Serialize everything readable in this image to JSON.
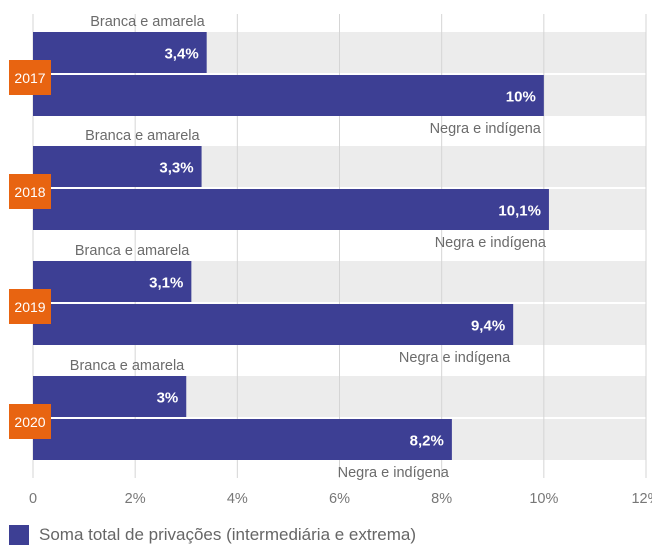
{
  "chart_data": {
    "type": "bar",
    "orientation": "horizontal",
    "groups": [
      {
        "label": "2017",
        "bars": [
          {
            "category": "Branca e amarela",
            "value": 3.4,
            "value_label": "3,4%"
          },
          {
            "category": "Negra e indígena",
            "value": 10.0,
            "value_label": "10%"
          }
        ]
      },
      {
        "label": "2018",
        "bars": [
          {
            "category": "Branca e amarela",
            "value": 3.3,
            "value_label": "3,3%"
          },
          {
            "category": "Negra e indígena",
            "value": 10.1,
            "value_label": "10,1%"
          }
        ]
      },
      {
        "label": "2019",
        "bars": [
          {
            "category": "Branca e amarela",
            "value": 3.1,
            "value_label": "3,1%"
          },
          {
            "category": "Negra e indígena",
            "value": 9.4,
            "value_label": "9,4%"
          }
        ]
      },
      {
        "label": "2020",
        "bars": [
          {
            "category": "Branca e amarela",
            "value": 3.0,
            "value_label": "3%"
          },
          {
            "category": "Negra e indígena",
            "value": 8.2,
            "value_label": "8,2%"
          }
        ]
      }
    ],
    "xlim": [
      0,
      12
    ],
    "xticks": [
      0,
      2,
      4,
      6,
      8,
      10,
      12
    ],
    "xtick_labels": [
      "0",
      "2%",
      "4%",
      "6%",
      "8%",
      "10%",
      "12%"
    ],
    "grid": true,
    "legend": {
      "label": "Soma total de privações (intermediária e extrema)",
      "placement": "bottom-left"
    },
    "colors": {
      "bar": "#3d3f94",
      "track": "#ececec",
      "year_badge": "#e86411",
      "grid": "#d5d5d5"
    }
  }
}
